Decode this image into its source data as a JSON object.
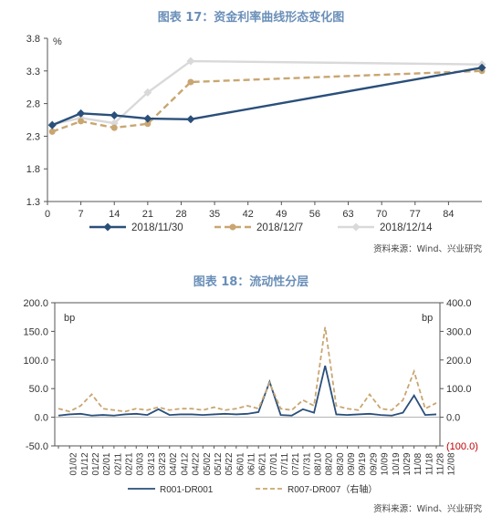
{
  "chart_data": [
    {
      "type": "line",
      "title": "图表 17：资金利率曲线形态变化图",
      "ylabel": "%",
      "xlabel": "",
      "xlim": [
        0,
        91
      ],
      "ylim": [
        1.3,
        3.8
      ],
      "x_ticks": [
        0,
        7,
        14,
        21,
        28,
        35,
        42,
        49,
        56,
        63,
        70,
        77,
        84
      ],
      "y_ticks": [
        "1.3",
        "1.8",
        "2.3",
        "2.8",
        "3.3",
        "3.8"
      ],
      "legend_position": "bottom",
      "series": [
        {
          "name": "2018/11/30",
          "color": "#2a4f7a",
          "style": "solid",
          "marker": "diamond",
          "x": [
            1,
            7,
            14,
            21,
            30,
            91
          ],
          "y": [
            2.47,
            2.65,
            2.62,
            2.57,
            2.56,
            3.35
          ]
        },
        {
          "name": "2018/12/7",
          "color": "#c9a671",
          "style": "dashed",
          "marker": "circle",
          "x": [
            1,
            7,
            14,
            21,
            30,
            91
          ],
          "y": [
            2.37,
            2.53,
            2.43,
            2.49,
            3.13,
            3.3
          ]
        },
        {
          "name": "2018/12/14",
          "color": "#d9d9d9",
          "style": "solid",
          "marker": "diamond",
          "x": [
            1,
            7,
            14,
            21,
            30,
            91
          ],
          "y": [
            2.48,
            2.58,
            2.5,
            2.97,
            3.45,
            3.4
          ]
        }
      ],
      "source": "资料来源：Wind、兴业研究"
    },
    {
      "type": "line",
      "title": "图表 18：流动性分层",
      "ylabel": "bp",
      "y2label": "bp",
      "xlabel": "",
      "ylim": [
        -50,
        200
      ],
      "y2lim": [
        -100,
        400
      ],
      "y_ticks": [
        "200.0",
        "150.0",
        "100.0",
        "50.0",
        "0.0",
        "-50.0"
      ],
      "y2_ticks": [
        "400.0",
        "300.0",
        "200.0",
        "100.0",
        "0.0",
        "(100.0)"
      ],
      "categories": [
        "01/02",
        "01/12",
        "01/22",
        "02/01",
        "02/11",
        "02/21",
        "03/03",
        "03/13",
        "03/23",
        "04/02",
        "04/12",
        "04/22",
        "05/02",
        "05/12",
        "05/22",
        "06/01",
        "06/11",
        "06/21",
        "07/01",
        "07/11",
        "07/21",
        "07/31",
        "08/10",
        "08/20",
        "08/30",
        "09/09",
        "09/19",
        "09/29",
        "10/09",
        "10/19",
        "10/29",
        "11/08",
        "11/18",
        "11/28",
        "12/08"
      ],
      "legend_position": "bottom",
      "series": [
        {
          "name": "R001-DR001",
          "color": "#2a4f7a",
          "style": "solid",
          "axis": "left",
          "x": [
            0,
            1,
            2,
            3,
            4,
            5,
            6,
            7,
            8,
            9,
            10,
            11,
            12,
            13,
            14,
            15,
            16,
            17,
            18,
            19,
            20,
            21,
            22,
            23,
            24,
            25,
            26,
            27,
            28,
            29,
            30,
            31,
            32,
            33,
            34
          ],
          "y": [
            3,
            5,
            6,
            3,
            4,
            3,
            5,
            6,
            4,
            14,
            4,
            5,
            5,
            4,
            5,
            6,
            5,
            6,
            9,
            62,
            4,
            3,
            14,
            8,
            90,
            5,
            4,
            5,
            6,
            4,
            3,
            8,
            38,
            4,
            5
          ]
        },
        {
          "name": "R007-DR007（右轴）",
          "color": "#c9a671",
          "style": "dashed",
          "axis": "right",
          "x": [
            0,
            1,
            2,
            3,
            4,
            5,
            6,
            7,
            8,
            9,
            10,
            11,
            12,
            13,
            14,
            15,
            16,
            17,
            18,
            19,
            20,
            21,
            22,
            23,
            24,
            25,
            26,
            27,
            28,
            29,
            30,
            31,
            32,
            33,
            34
          ],
          "y": [
            30,
            20,
            40,
            80,
            30,
            25,
            20,
            30,
            25,
            35,
            25,
            30,
            30,
            25,
            35,
            25,
            30,
            40,
            30,
            120,
            30,
            25,
            60,
            40,
            315,
            40,
            30,
            25,
            80,
            30,
            25,
            60,
            160,
            30,
            50
          ]
        }
      ],
      "source": "资料来源：Wind、兴业研究"
    }
  ]
}
